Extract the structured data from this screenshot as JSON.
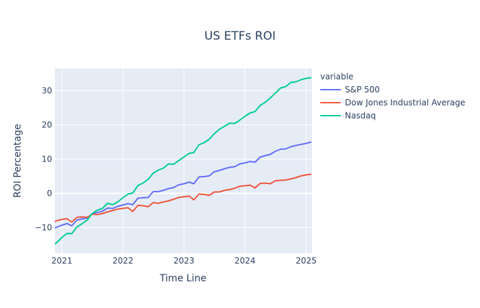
{
  "chart_data": {
    "type": "line",
    "title": "US ETFs ROI",
    "xlabel": "Time Line",
    "ylabel": "ROI Percentage",
    "legend_title": "variable",
    "legend_placement": "right",
    "grid": true,
    "xlim": [
      "2020-11-20",
      "2025-02-05"
    ],
    "ylim": [
      -17.5,
      36.5
    ],
    "x_ticks": [
      "2021-01-01",
      "2022-01-01",
      "2023-01-01",
      "2024-01-01",
      "2025-01-01"
    ],
    "x_tick_labels": [
      "2021",
      "2022",
      "2023",
      "2024",
      "2025"
    ],
    "y_ticks": [
      -10,
      0,
      10,
      20,
      30
    ],
    "x": [
      "2020-11",
      "2020-12",
      "2021-01",
      "2021-02",
      "2021-03",
      "2021-04",
      "2021-05",
      "2021-06",
      "2021-07",
      "2021-08",
      "2021-09",
      "2021-10",
      "2021-11",
      "2021-12",
      "2022-01",
      "2022-02",
      "2022-03",
      "2022-04",
      "2022-05",
      "2022-06",
      "2022-07",
      "2022-08",
      "2022-09",
      "2022-10",
      "2022-11",
      "2022-12",
      "2023-01",
      "2023-02",
      "2023-03",
      "2023-04",
      "2023-05",
      "2023-06",
      "2023-07",
      "2023-08",
      "2023-09",
      "2023-10",
      "2023-11",
      "2023-12",
      "2024-01",
      "2024-02",
      "2024-03",
      "2024-04",
      "2024-05",
      "2024-06",
      "2024-07",
      "2024-08",
      "2024-09",
      "2024-10",
      "2024-11",
      "2024-12",
      "2025-01",
      "2025-02"
    ],
    "series": [
      {
        "name": "S&P 500",
        "color": "#636efa",
        "values": [
          -10.5,
          -9.9,
          -9.3,
          -8.8,
          -9.5,
          -7.8,
          -7.5,
          -7.2,
          -6.0,
          -5.6,
          -5.2,
          -4.3,
          -4.4,
          -3.8,
          -3.4,
          -3.0,
          -3.3,
          -1.4,
          -1.3,
          -1.2,
          0.5,
          0.5,
          0.9,
          1.4,
          1.7,
          2.5,
          2.8,
          3.3,
          2.8,
          4.8,
          4.9,
          5.1,
          6.3,
          6.7,
          7.2,
          7.6,
          7.8,
          8.6,
          8.9,
          9.3,
          9.1,
          10.6,
          11.0,
          11.4,
          12.3,
          12.9,
          13.0,
          13.6,
          14.0,
          14.3,
          14.6,
          15.0
        ]
      },
      {
        "name": "Dow Jones Industrial Average",
        "color": "#ef553b",
        "values": [
          -8.6,
          -8.0,
          -7.6,
          -7.4,
          -8.4,
          -7.0,
          -6.9,
          -7.0,
          -6.1,
          -6.2,
          -5.9,
          -5.4,
          -5.0,
          -4.6,
          -4.4,
          -4.2,
          -5.3,
          -3.5,
          -3.6,
          -3.9,
          -2.7,
          -2.9,
          -2.5,
          -2.2,
          -1.7,
          -1.2,
          -1.0,
          -0.8,
          -1.9,
          -0.2,
          -0.3,
          -0.6,
          0.4,
          0.4,
          0.9,
          1.1,
          1.5,
          2.1,
          2.2,
          2.4,
          1.6,
          2.9,
          3.0,
          2.8,
          3.7,
          3.8,
          3.9,
          4.2,
          4.6,
          5.1,
          5.4,
          5.6
        ]
      },
      {
        "name": "Nasdaq",
        "color": "#00cc96",
        "values": [
          -15.3,
          -14.4,
          -12.9,
          -11.7,
          -11.8,
          -9.8,
          -8.9,
          -7.8,
          -5.9,
          -4.9,
          -4.4,
          -2.9,
          -3.3,
          -2.5,
          -1.3,
          -0.2,
          0.1,
          2.3,
          3.0,
          4.1,
          5.9,
          6.8,
          7.4,
          8.6,
          8.5,
          9.6,
          10.6,
          11.7,
          11.9,
          14.2,
          14.8,
          15.8,
          17.4,
          18.7,
          19.6,
          20.5,
          20.4,
          21.4,
          22.5,
          23.5,
          23.9,
          25.7,
          26.6,
          27.9,
          29.3,
          30.8,
          31.2,
          32.4,
          32.6,
          33.2,
          33.6,
          33.8
        ]
      }
    ]
  }
}
